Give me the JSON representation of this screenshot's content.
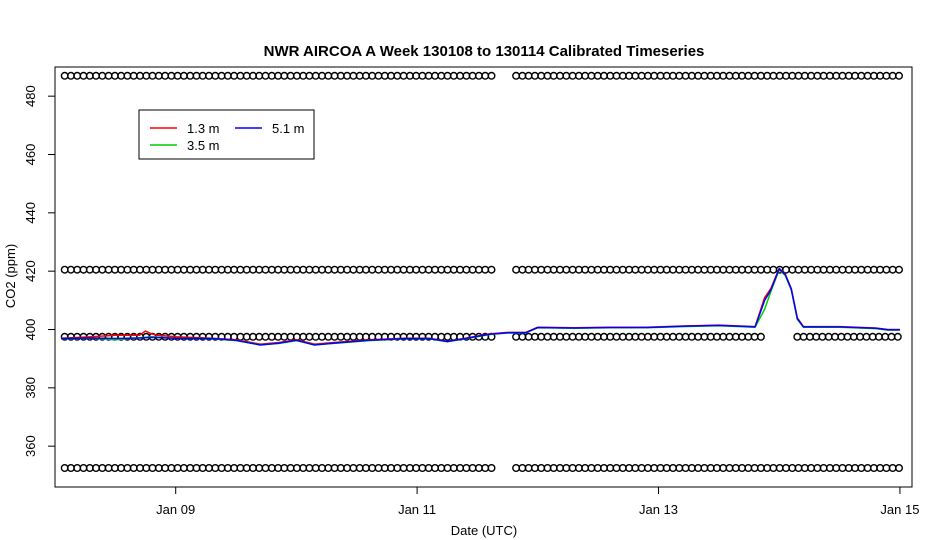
{
  "chart_data": {
    "type": "line",
    "title": "NWR AIRCOA A  Week 130108 to 130114  Calibrated Timeseries",
    "xlabel": "Date (UTC)",
    "ylabel": "CO2 (ppm)",
    "xlim": [
      8.0,
      15.1
    ],
    "ylim": [
      346,
      490
    ],
    "xticks": [
      {
        "value": 9,
        "label": "Jan 09"
      },
      {
        "value": 11,
        "label": "Jan 11"
      },
      {
        "value": 13,
        "label": "Jan 13"
      },
      {
        "value": 15,
        "label": "Jan 15"
      }
    ],
    "yticks": [
      360,
      380,
      400,
      420,
      440,
      460,
      480
    ],
    "legend": {
      "placement": "top-left",
      "entries": [
        {
          "name": "1.3 m",
          "color": "#ff0000"
        },
        {
          "name": "3.5 m",
          "color": "#00cc00"
        },
        {
          "name": "5.1 m",
          "color": "#0000ff"
        }
      ]
    },
    "series": [
      {
        "name": "1.3 m",
        "color": "#ff0000",
        "x": [
          8.05,
          8.3,
          8.5,
          8.7,
          8.75,
          8.8,
          8.85,
          9.0,
          9.3,
          9.5,
          9.7,
          9.85,
          10.0,
          10.15,
          10.3,
          10.6,
          10.9,
          11.1,
          11.25,
          11.4,
          11.6,
          11.75,
          11.9,
          12.0,
          12.3,
          12.6,
          12.9,
          13.2,
          13.5,
          13.8,
          13.88,
          13.93,
          14.0,
          14.05,
          14.1,
          14.15,
          14.2,
          14.5,
          14.8,
          14.9,
          15.0
        ],
        "y": [
          397,
          397.5,
          398,
          398,
          399.5,
          398.5,
          398,
          397.5,
          397,
          396.5,
          395,
          395.5,
          396.5,
          395,
          395.5,
          396.5,
          397,
          397,
          396,
          397,
          398.5,
          399,
          399,
          400.8,
          400.6,
          400.8,
          400.8,
          401.2,
          401.5,
          401,
          411,
          414,
          421,
          419,
          414,
          404,
          401,
          401,
          400.5,
          400,
          400
        ]
      },
      {
        "name": "3.5 m",
        "color": "#00cc00",
        "x": [
          8.05,
          8.3,
          8.5,
          8.7,
          8.8,
          9.0,
          9.3,
          9.5,
          9.7,
          9.85,
          10.0,
          10.15,
          10.3,
          10.6,
          10.9,
          11.1,
          11.25,
          11.4,
          11.6,
          11.75,
          11.9,
          12.0,
          12.3,
          12.6,
          12.9,
          13.2,
          13.5,
          13.8,
          13.88,
          13.93,
          14.0,
          14.05,
          14.1,
          14.15,
          14.2,
          14.5,
          14.8,
          14.9,
          15.0
        ],
        "y": [
          396.8,
          397,
          396.5,
          397.2,
          397.5,
          397,
          396.8,
          396.2,
          394.8,
          395.2,
          396.2,
          394.8,
          395.2,
          396.2,
          396.8,
          396.8,
          395.8,
          396.8,
          398.3,
          398.8,
          398.8,
          400.6,
          400.4,
          400.6,
          400.6,
          401,
          401.3,
          400.8,
          407,
          413,
          420.5,
          418.5,
          413.5,
          403.5,
          400.8,
          400.8,
          400.3,
          399.8,
          399.8
        ]
      },
      {
        "name": "5.1 m",
        "color": "#0000ff",
        "x": [
          8.05,
          8.3,
          8.5,
          8.7,
          8.8,
          9.0,
          9.3,
          9.5,
          9.7,
          9.85,
          10.0,
          10.15,
          10.3,
          10.6,
          10.9,
          11.1,
          11.25,
          11.4,
          11.6,
          11.75,
          11.9,
          12.0,
          12.3,
          12.6,
          12.9,
          13.2,
          13.5,
          13.8,
          13.88,
          13.93,
          14.0,
          14.05,
          14.1,
          14.15,
          14.2,
          14.5,
          14.8,
          14.9,
          15.0
        ],
        "y": [
          396.9,
          397.1,
          396.9,
          397.1,
          397.3,
          397,
          396.9,
          396.3,
          394.7,
          395.3,
          396.3,
          394.7,
          395.3,
          396.3,
          396.9,
          396.9,
          395.9,
          396.9,
          398.4,
          398.9,
          398.9,
          400.7,
          400.5,
          400.7,
          400.7,
          401.1,
          401.4,
          400.9,
          410,
          413.5,
          420.8,
          418.8,
          413.8,
          403.8,
          400.9,
          400.9,
          400.4,
          399.9,
          399.9
        ]
      },
      {
        "name": "flag-high",
        "marker": "circle",
        "y_value": 487,
        "segments": [
          [
            8.08,
            11.65
          ],
          [
            11.82,
            15.0
          ]
        ]
      },
      {
        "name": "flag-mid",
        "marker": "circle",
        "y_value": 420.5,
        "segments": [
          [
            8.08,
            11.65
          ],
          [
            11.82,
            15.0
          ]
        ]
      },
      {
        "name": "flag-near",
        "marker": "circle",
        "y_value": 397.5,
        "segments": [
          [
            8.08,
            11.65
          ],
          [
            11.82,
            13.85
          ],
          [
            14.15,
            15.0
          ]
        ]
      },
      {
        "name": "flag-low",
        "marker": "circle",
        "y_value": 352.5,
        "segments": [
          [
            8.08,
            11.65
          ],
          [
            11.82,
            15.0
          ]
        ]
      }
    ]
  }
}
